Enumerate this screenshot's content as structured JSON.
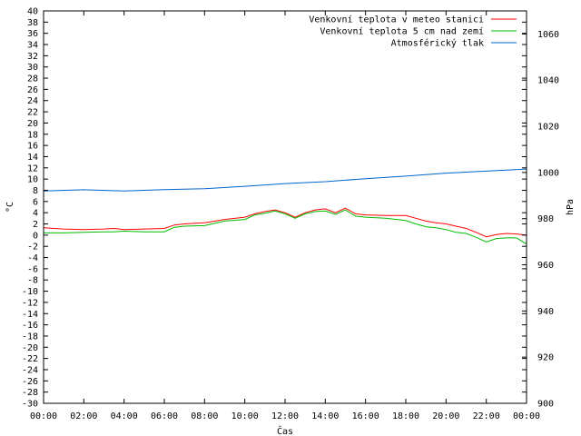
{
  "chart_data": {
    "type": "line",
    "xlabel": "Čas",
    "ylabel": "°C",
    "y2label": "hPa",
    "x_ticks": [
      "00:00",
      "02:00",
      "04:00",
      "06:00",
      "08:00",
      "10:00",
      "12:00",
      "14:00",
      "16:00",
      "18:00",
      "20:00",
      "22:00",
      "00:00"
    ],
    "ylim": [
      -30,
      40
    ],
    "y_ticks": [
      -30,
      -28,
      -26,
      -24,
      -22,
      -20,
      -18,
      -16,
      -14,
      -12,
      -10,
      -8,
      -6,
      -4,
      -2,
      0,
      2,
      4,
      6,
      8,
      10,
      12,
      14,
      16,
      18,
      20,
      22,
      24,
      26,
      28,
      30,
      32,
      34,
      36,
      38,
      40
    ],
    "y2lim": [
      900,
      1070
    ],
    "y2_ticks": [
      900,
      920,
      940,
      960,
      980,
      1000,
      1020,
      1040,
      1060
    ],
    "legend_position": "top-right",
    "grid": false,
    "series": [
      {
        "name": "Venkovní teplota v meteo stanici",
        "color": "#ff0000",
        "axis": "y",
        "hours": [
          0,
          1,
          2,
          3,
          3.5,
          4,
          5,
          6,
          6.5,
          7,
          8,
          9,
          10,
          10.5,
          11,
          11.5,
          12,
          12.5,
          13,
          13.5,
          14,
          14.5,
          15,
          15.5,
          16,
          17,
          18,
          18.5,
          19,
          19.5,
          20,
          20.5,
          21,
          21.5,
          22,
          22.5,
          23,
          23.5,
          24
        ],
        "values": [
          1.3,
          1.1,
          1.0,
          1.1,
          1.2,
          1.0,
          1.1,
          1.2,
          1.8,
          2.0,
          2.2,
          2.8,
          3.2,
          3.8,
          4.2,
          4.5,
          4.0,
          3.2,
          4.0,
          4.5,
          4.7,
          4.0,
          4.8,
          3.8,
          3.6,
          3.5,
          3.5,
          3.0,
          2.5,
          2.2,
          2.0,
          1.6,
          1.2,
          0.5,
          -0.3,
          0.1,
          0.3,
          0.2,
          0.0
        ]
      },
      {
        "name": "Venkovní teplota 5 cm nad zemí",
        "color": "#00bb00",
        "axis": "y",
        "hours": [
          0,
          1,
          2,
          3,
          3.5,
          4,
          5,
          6,
          6.5,
          7,
          8,
          9,
          10,
          10.5,
          11,
          11.5,
          12,
          12.5,
          13,
          13.5,
          14,
          14.5,
          15,
          15.5,
          16,
          17,
          18,
          18.5,
          19,
          19.5,
          20,
          20.5,
          21,
          21.5,
          22,
          22.5,
          23,
          23.5,
          24
        ],
        "values": [
          0.4,
          0.4,
          0.5,
          0.6,
          0.6,
          0.7,
          0.6,
          0.6,
          1.4,
          1.6,
          1.7,
          2.5,
          2.8,
          3.6,
          3.9,
          4.3,
          3.8,
          3.0,
          3.8,
          4.2,
          4.3,
          3.7,
          4.5,
          3.4,
          3.2,
          3.0,
          2.6,
          2.0,
          1.5,
          1.3,
          1.0,
          0.5,
          0.3,
          -0.4,
          -1.2,
          -0.6,
          -0.5,
          -0.5,
          -1.6
        ]
      },
      {
        "name": "Atmosférický tlak",
        "color": "#0066cc",
        "axis": "y2",
        "hours": [
          0,
          2,
          4,
          6,
          8,
          10,
          12,
          14,
          16,
          18,
          20,
          22,
          24
        ],
        "values": [
          992.0,
          992.5,
          992.0,
          992.6,
          993.0,
          994.0,
          995.2,
          996.0,
          997.3,
          998.4,
          999.7,
          1000.6,
          1001.5
        ]
      }
    ]
  }
}
